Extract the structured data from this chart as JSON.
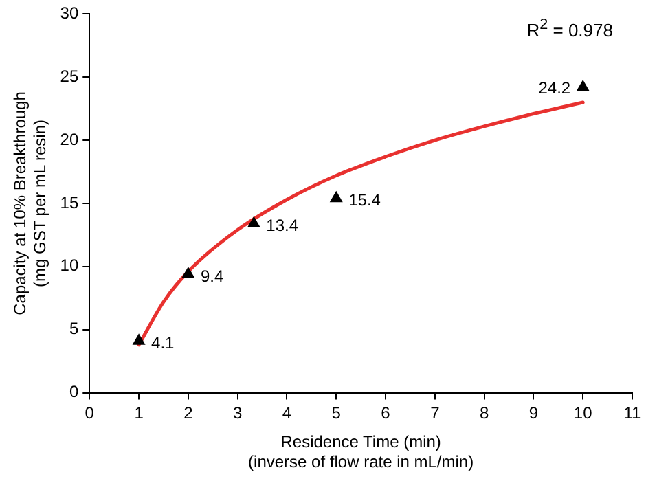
{
  "chart_data": {
    "type": "scatter",
    "xlabel": "Residence Time (min)\n(inverse of flow rate in mL/min)",
    "ylabel": "Capacity at 10% Breakthrough\n(mg GST per mL resin)",
    "xlim": [
      0,
      11
    ],
    "xticks": [
      0,
      1,
      2,
      3,
      4,
      5,
      6,
      7,
      8,
      9,
      10,
      11
    ],
    "ylim": [
      0,
      30
    ],
    "yticks": [
      0,
      5,
      10,
      15,
      20,
      25,
      30
    ],
    "grid": false,
    "legend": false,
    "annotations": [
      "R$^{2}$ = 0.978"
    ],
    "series": [
      {
        "type": "scatter",
        "color": "#000000",
        "marker": "triangle",
        "x": [
          1,
          2,
          3.33,
          5,
          10
        ],
        "values": [
          4.1,
          9.4,
          13.4,
          15.4,
          24.2
        ],
        "value_labels": [
          "4.1",
          "9.4",
          "13.4",
          "15.4",
          "24.2"
        ]
      },
      {
        "type": "line",
        "color": "#e8312f",
        "marker": "none",
        "x": [
          1,
          1.5,
          2,
          3,
          4,
          5,
          6,
          7,
          8,
          9,
          10
        ],
        "values": [
          3.8,
          7.2,
          9.6,
          12.9,
          15.3,
          17.2,
          18.7,
          20.0,
          21.1,
          22.1,
          23.0
        ]
      }
    ]
  }
}
